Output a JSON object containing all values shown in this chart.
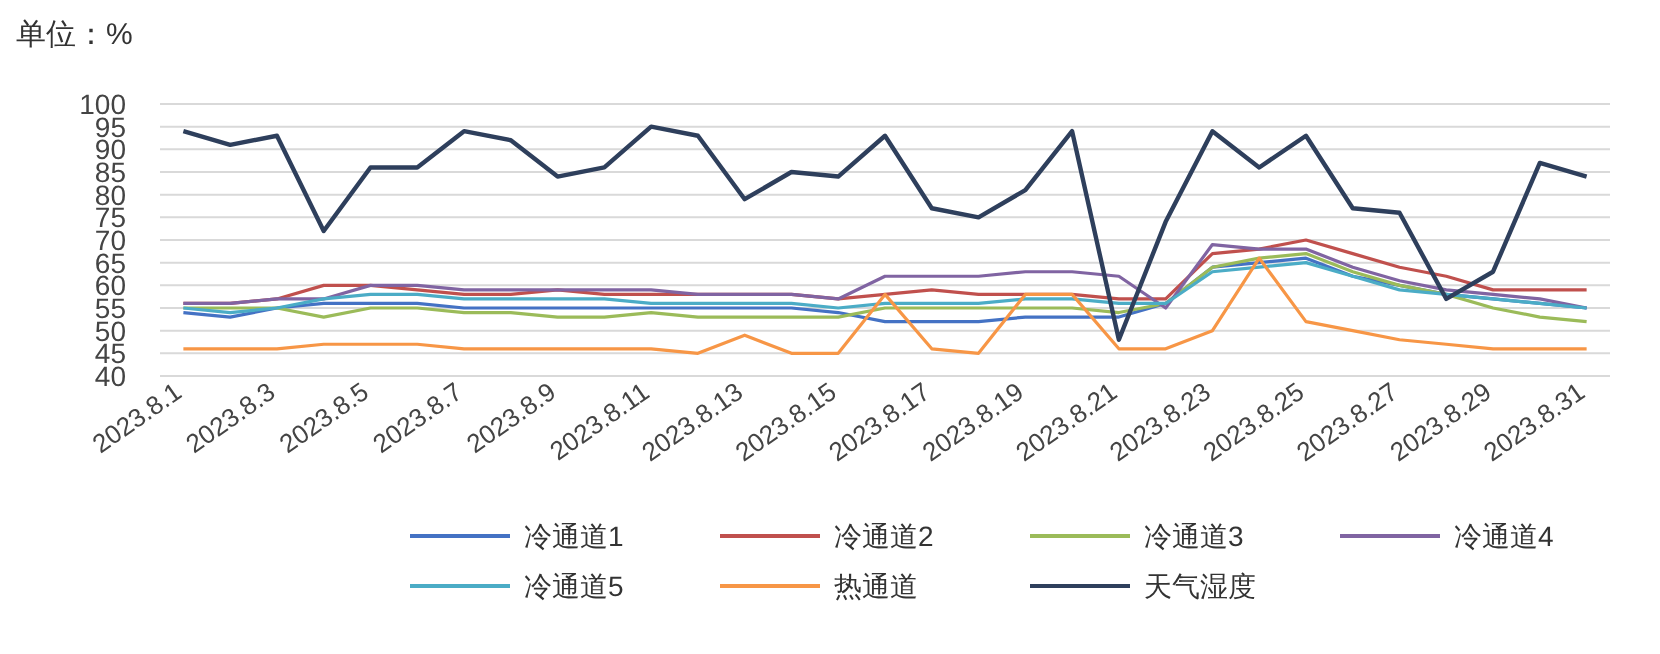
{
  "chart_data": {
    "type": "line",
    "ylabel": "单位：%",
    "categories": [
      "2023.8.1",
      null,
      "2023.8.3",
      null,
      "2023.8.5",
      null,
      "2023.8.7",
      null,
      "2023.8.9",
      null,
      "2023.8.11",
      null,
      "2023.8.13",
      null,
      "2023.8.15",
      null,
      "2023.8.17",
      null,
      "2023.8.19",
      null,
      "2023.8.21",
      null,
      "2023.8.23",
      null,
      "2023.8.25",
      null,
      "2023.8.27",
      null,
      "2023.8.29",
      null,
      "2023.8.31"
    ],
    "ylim": [
      40,
      100
    ],
    "yticks": [
      40,
      45,
      50,
      55,
      60,
      65,
      70,
      75,
      80,
      85,
      90,
      95,
      100
    ],
    "grid": "y",
    "legend": "bottom",
    "marker": "none",
    "line_style": "solid",
    "series": [
      {
        "name": "冷通道1",
        "color": "#4472c4",
        "values": [
          54,
          53,
          55,
          56,
          56,
          56,
          55,
          55,
          55,
          55,
          55,
          55,
          55,
          55,
          54,
          52,
          52,
          52,
          53,
          53,
          53,
          56,
          64,
          65,
          66,
          62,
          60,
          58,
          57,
          56,
          55
        ]
      },
      {
        "name": "冷通道2",
        "color": "#c0504d",
        "values": [
          56,
          56,
          57,
          60,
          60,
          59,
          58,
          58,
          59,
          58,
          58,
          58,
          58,
          58,
          57,
          58,
          59,
          58,
          58,
          58,
          57,
          57,
          67,
          68,
          70,
          67,
          64,
          62,
          59,
          59,
          59
        ]
      },
      {
        "name": "冷通道3",
        "color": "#9bbb59",
        "values": [
          55,
          55,
          55,
          53,
          55,
          55,
          54,
          54,
          53,
          53,
          54,
          53,
          53,
          53,
          53,
          55,
          55,
          55,
          55,
          55,
          54,
          56,
          64,
          66,
          67,
          63,
          60,
          58,
          55,
          53,
          52
        ]
      },
      {
        "name": "冷通道4",
        "color": "#8064a2",
        "values": [
          56,
          56,
          57,
          57,
          60,
          60,
          59,
          59,
          59,
          59,
          59,
          58,
          58,
          58,
          57,
          62,
          62,
          62,
          63,
          63,
          62,
          55,
          69,
          68,
          68,
          64,
          61,
          59,
          58,
          57,
          55
        ]
      },
      {
        "name": "冷通道5",
        "color": "#4bacc6",
        "values": [
          55,
          54,
          55,
          57,
          58,
          58,
          57,
          57,
          57,
          57,
          56,
          56,
          56,
          56,
          55,
          56,
          56,
          56,
          57,
          57,
          56,
          56,
          63,
          64,
          65,
          62,
          59,
          58,
          57,
          56,
          55
        ]
      },
      {
        "name": "热通道",
        "color": "#f79646",
        "values": [
          46,
          46,
          46,
          47,
          47,
          47,
          46,
          46,
          46,
          46,
          46,
          45,
          49,
          45,
          45,
          58,
          46,
          45,
          58,
          58,
          46,
          46,
          50,
          66,
          52,
          50,
          48,
          47,
          46,
          46,
          46
        ]
      },
      {
        "name": "天气湿度",
        "color": "#2e3f5c",
        "values": [
          94,
          91,
          93,
          72,
          86,
          86,
          94,
          92,
          84,
          86,
          95,
          93,
          79,
          85,
          84,
          93,
          77,
          75,
          81,
          94,
          48,
          74,
          94,
          86,
          93,
          77,
          76,
          57,
          63,
          87,
          84
        ]
      }
    ]
  }
}
